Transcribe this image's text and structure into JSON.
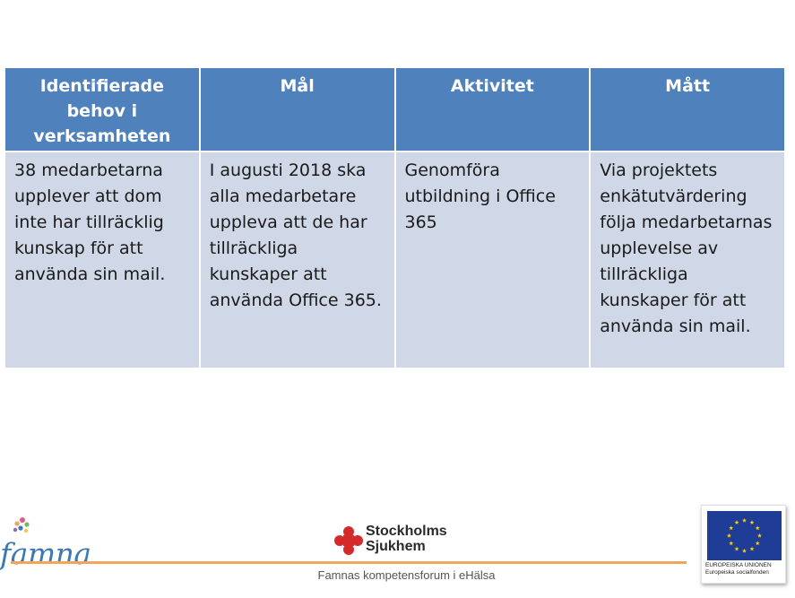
{
  "table": {
    "headers": [
      "Identifierade behov i verksamheten",
      "Mål",
      "Aktivitet",
      "Mått"
    ],
    "rows": [
      [
        "38 medarbetarna upplever att dom inte har tillräcklig kunskap för att använda sin mail.",
        "I augusti 2018 ska alla medarbetare uppleva att de har tillräckliga kunskaper att använda Office 365.",
        "Genomföra utbildning i Office 365",
        "Via projektets enkätutvärdering följa medarbetarnas upplevelse av tillräckliga kunskaper för att använda sin mail."
      ]
    ]
  },
  "footer": {
    "famna_logo_text": "famna",
    "ssh_line1": "Stockholms",
    "ssh_line2": "Sjukhem",
    "caption": "Famnas kompetensforum i eHälsa",
    "eu_line1": "EUROPEISKA UNIONEN",
    "eu_line2": "Europeiska socialfonden"
  },
  "colors": {
    "header_bg": "#4f81bd",
    "cell_bg": "#d0d8e8",
    "footer_line": "#f2a65a",
    "eu_blue": "#1f3c96",
    "eu_star": "#ffd200",
    "ssh_red": "#d42a2a"
  }
}
